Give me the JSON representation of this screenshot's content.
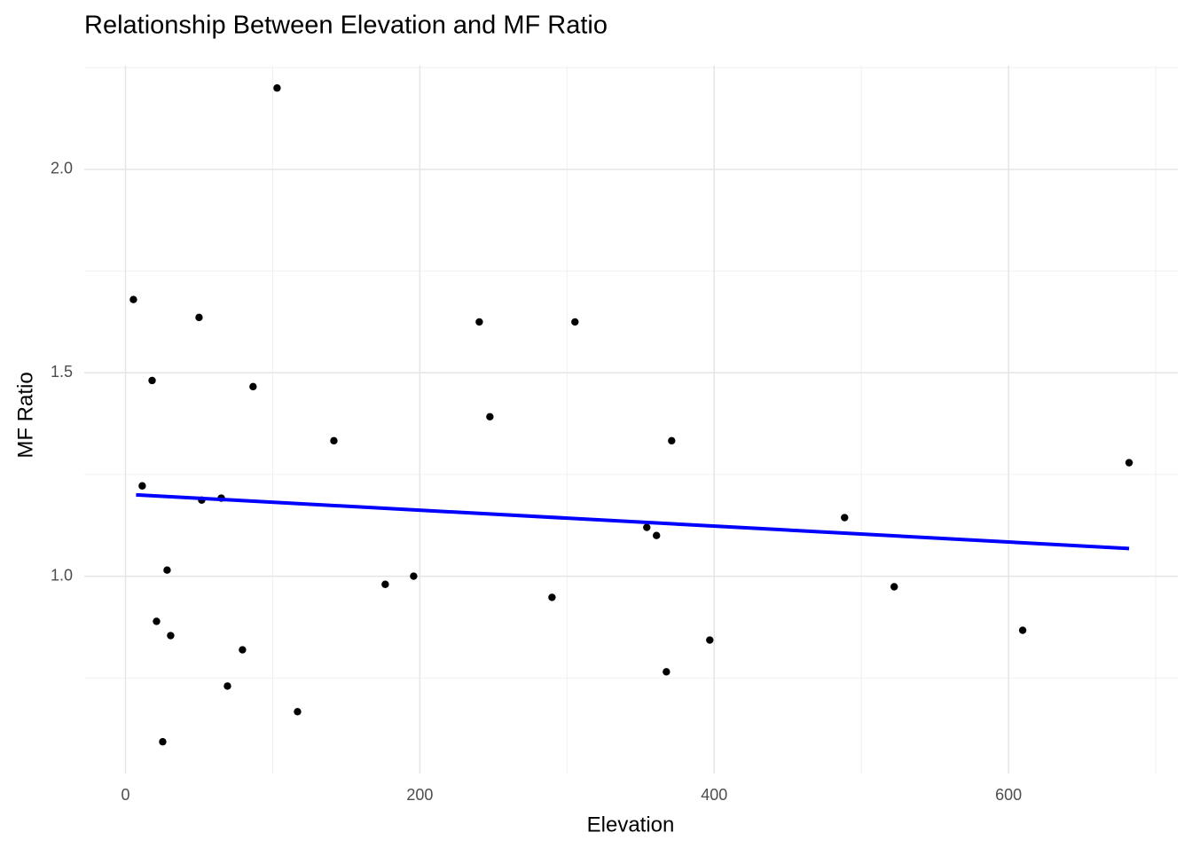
{
  "chart_data": {
    "type": "scatter",
    "title": "Relationship Between Elevation and MF Ratio",
    "x_label": "Elevation",
    "y_label": "MF Ratio",
    "xlim": [
      -28,
      715
    ],
    "ylim": [
      0.515,
      2.255
    ],
    "xticks": [
      0,
      200,
      400,
      600
    ],
    "yticks": [
      {
        "value": 1,
        "label": "1.0"
      },
      1.5,
      {
        "value": 2,
        "label": "2.0"
      }
    ],
    "minor_xticks": [
      100,
      300,
      500,
      700
    ],
    "minor_yticks": [
      0.75,
      1.25,
      1.75,
      2.25
    ],
    "grid": true,
    "series": [
      {
        "color": "#000000",
        "x": [
          5.4,
          11.4,
          18.1,
          21.1,
          25.3,
          28.3,
          30.7,
          50,
          51.8,
          65.1,
          69.3,
          79.5,
          86.7,
          103,
          116.9,
          141.6,
          176.5,
          195.8,
          240.4,
          247.6,
          289.8,
          305.4,
          354.2,
          360.8,
          367.5,
          371.1,
          397,
          488.6,
          522.3,
          609.6,
          681.9
        ],
        "values": [
          1.68,
          1.222,
          1.481,
          0.889,
          0.593,
          1.015,
          0.854,
          1.636,
          1.187,
          1.192,
          0.73,
          0.819,
          1.466,
          2.2,
          0.667,
          1.333,
          0.98,
          1.0,
          1.625,
          1.392,
          0.948,
          1.625,
          1.12,
          1.1,
          0.765,
          1.333,
          0.843,
          1.144,
          0.974,
          0.867,
          1.279
        ]
      }
    ],
    "trend": {
      "color": "#0000ff",
      "x": [
        7.2,
        681.9
      ],
      "values": [
        1.2,
        1.068
      ]
    }
  }
}
